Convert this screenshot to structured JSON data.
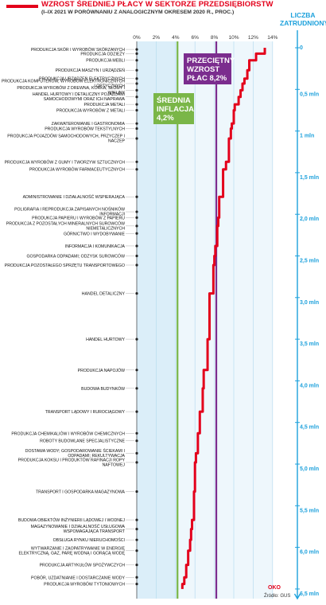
{
  "header": {
    "title": "WZROST ŚREDNIEJ PŁACY W SEKTORZE PRZEDSIĘBIORSTW",
    "subtitle": "(I–IX 2021 W PORÓWNANIU Z ANALOGICZNYM OKRESEM 2020 R., PROC.)",
    "right_title": "LICZBA ZATRUDNIONYCH",
    "source": "Źródło: GUS",
    "logo": "OKO"
  },
  "colors": {
    "line": "#e3001b",
    "axis_blue": "#1da1dc",
    "inflation": "#7ab648",
    "average": "#7b2d8e",
    "band": "#dbeef9"
  },
  "chart_data": {
    "type": "line",
    "x_axis_label": "proc.",
    "x_ticks": [
      "0%",
      "2%",
      "4%",
      "6%",
      "8%",
      "10%",
      "12%",
      "14%"
    ],
    "xlim": [
      0,
      14
    ],
    "y_ticks": [
      "0",
      "0,5 mln",
      "1 mln",
      "1,5 mln",
      "2,0 mln",
      "2,5 mln",
      "3,0 mln",
      "3,5 mln",
      "4,0 mln",
      "4,5 mln",
      "5,0 mln",
      "5,5 mln",
      "6,0 mln",
      "6,5 mln"
    ],
    "ylim": [
      0,
      6.5
    ],
    "y_unit": "mln",
    "reference_lines": [
      {
        "name": "ŚREDNIA INFLACJA",
        "value_label": "4,2%",
        "x": 4.2
      },
      {
        "name": "PRZECIĘTNY WZROST PŁAC",
        "value_label": "8,2%",
        "x": 8.2
      }
    ],
    "sectors": [
      {
        "name": "PRODUKCJA SKÓR I WYROBÓW SKÓRZANYCH",
        "growth": 13.2,
        "employees_mln": 0.02
      },
      {
        "name": "PRODUKCJA ODZIEŻY",
        "growth": 12.3,
        "employees_mln": 0.07
      },
      {
        "name": "PRODUKCJA MEBLI",
        "growth": 11.6,
        "employees_mln": 0.15
      },
      {
        "name": "PRODUKCJA MASZYN I URZĄDZEŃ",
        "growth": 11.4,
        "employees_mln": 0.27
      },
      {
        "name": "PRODUKCJA URZĄDZEŃ ELEKTRYCZNYCH",
        "growth": 11.1,
        "employees_mln": 0.37
      },
      {
        "name": "PRODUKCJA KOMPUTERÓW, WYROBÓW ELEKTRONICZNYCH I OPTYCZNYCH",
        "growth": 10.9,
        "employees_mln": 0.43
      },
      {
        "name": "PRODUKCJA WYROBÓW Z DREWNA, KORKA, SŁOMY I WIKLINY",
        "growth": 10.7,
        "employees_mln": 0.51
      },
      {
        "name": "HANDEL HURTOWY I DETALICZNY POJAZDAMI SAMOCHODOWYMI ORAZ ICH NAPRAWA",
        "growth": 10.5,
        "employees_mln": 0.59
      },
      {
        "name": "PRODUKCJA METALI",
        "growth": 10.1,
        "employees_mln": 0.68
      },
      {
        "name": "PRODUKCJA WYROBÓW Z METALI",
        "growth": 10.0,
        "employees_mln": 0.75
      },
      {
        "name": "ZAKWATEROWANIE I GASTRONOMIA",
        "growth": 9.8,
        "employees_mln": 0.91
      },
      {
        "name": "PRODUKCJA WYROBÓW TEKSTYLNYCH",
        "growth": 9.7,
        "employees_mln": 0.97
      },
      {
        "name": "PRODUKCJA POJAZDÓW SAMOCHODOWYCH, PRZYCZEP I NACZEP",
        "growth": 9.5,
        "employees_mln": 1.09
      },
      {
        "name": "PRODUKCJA WYROBÓW Z GUMY I TWORZYW SZTUCZNYCH",
        "growth": 9.2,
        "employees_mln": 1.37
      },
      {
        "name": "PRODUKCJA WYROBÓW FARMACEUTYCZNYCH",
        "growth": 8.9,
        "employees_mln": 1.46
      },
      {
        "name": "ADMINISTROWANIE I DZIAŁALNOŚĆ WSPIERAJĄCA",
        "growth": 8.5,
        "employees_mln": 1.79
      },
      {
        "name": "POLIGRAFIA I REPRODUKCJA ZAPISANYCH NOŚNIKÓW INFORMACJI",
        "growth": 8.5,
        "employees_mln": 1.97
      },
      {
        "name": "PRODUKCJA PAPIERU I WYROBÓW Z PAPIERU",
        "growth": 8.4,
        "employees_mln": 2.04
      },
      {
        "name": "PRODUKCJA Z POZOSTAŁYCH MINERALNYCH SUROWCÓW NIEMETALICZNYCH",
        "growth": 8.3,
        "employees_mln": 2.14
      },
      {
        "name": "GÓRNICTWO I WYDOBYWANIE",
        "growth": 8.3,
        "employees_mln": 2.23
      },
      {
        "name": "INFORMACJA I KOMUNIKACJA",
        "growth": 8.1,
        "employees_mln": 2.38
      },
      {
        "name": "GOSPODARKA ODPADAMI; ODZYSK SUROWCÓW",
        "growth": 8.0,
        "employees_mln": 2.5
      },
      {
        "name": "PRODUKCJA POZOSTAŁEGO SPRZĘTU TRANSPORTOWEGO",
        "growth": 7.9,
        "employees_mln": 2.61
      },
      {
        "name": "HANDEL DETALICZNY",
        "growth": 7.5,
        "employees_mln": 2.95
      },
      {
        "name": "HANDEL HURTOWY",
        "growth": 7.3,
        "employees_mln": 3.5
      },
      {
        "name": "PRODUKCJA NAPOJÓW",
        "growth": 6.9,
        "employees_mln": 3.87
      },
      {
        "name": "BUDOWA BUDYNKÓW",
        "growth": 6.8,
        "employees_mln": 4.09
      },
      {
        "name": "TRANSPORT LĄDOWY I RUROCIĄGOWY",
        "growth": 6.5,
        "employees_mln": 4.37
      },
      {
        "name": "PRODUKCJA CHEMIKALIÓW I WYROBÓW CHEMICZNYCH",
        "growth": 6.3,
        "employees_mln": 4.63
      },
      {
        "name": "ROBOTY BUDOWLANE SPECJALISTYCZNE",
        "growth": 6.3,
        "employees_mln": 4.72
      },
      {
        "name": "DOSTAWA WODY; GOSPODAROWANIE ŚCIEKAMI I ODPADAMI; REKULTYWACJA",
        "growth": 6.1,
        "employees_mln": 4.87
      },
      {
        "name": "PRODUKCJA KOKSU I PRODUKTÓW RAFINACJI ROPY NAFTOWEJ",
        "growth": 6.0,
        "employees_mln": 4.98
      },
      {
        "name": "TRANSPORT I GOSPODARKA MAGAZYNOWA",
        "growth": 5.9,
        "employees_mln": 5.33
      },
      {
        "name": "BUDOWA OBIEKTÓW INŻYNIERII LĄDOWEJ I WODNEJ",
        "growth": 5.7,
        "employees_mln": 5.67
      },
      {
        "name": "MAGAZYNOWANIE I DZIAŁALNOŚĆ USŁUGOWA WSPOMAGAJĄCA TRANSPORT",
        "growth": 5.6,
        "employees_mln": 5.78
      },
      {
        "name": "OBSŁUGA RYNKU NIERUCHOMOŚCI",
        "growth": 5.5,
        "employees_mln": 5.91
      },
      {
        "name": "WYTWARZANIE I ZAOPATRYWANIE W ENERGIĘ ELEKTRYCZNĄ, GAZ, PARĘ WODNĄ I GORĄCĄ WODĘ",
        "growth": 5.3,
        "employees_mln": 6.04
      },
      {
        "name": "PRODUKCJA ARTYKUŁÓW SPOŻYWCZYCH",
        "growth": 5.1,
        "employees_mln": 6.21
      },
      {
        "name": "POBÓR, UZDATNIANIE I DOSTARCZANIE WODY",
        "growth": 4.9,
        "employees_mln": 6.36
      },
      {
        "name": "PRODUKCJA WYROBÓW TYTONIOWYCH",
        "growth": 4.7,
        "employees_mln": 6.44
      }
    ]
  }
}
